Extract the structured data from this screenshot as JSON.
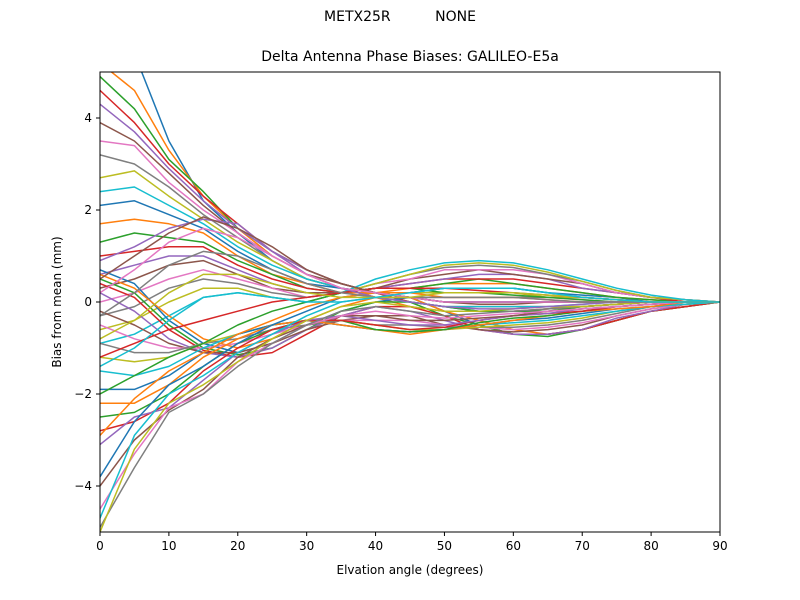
{
  "header": {
    "suptitle_left": "METX25R",
    "suptitle_right": "NONE",
    "title": "Delta Antenna Phase Biases: GALILEO-E5a"
  },
  "chart_data": {
    "type": "line",
    "title": "Delta Antenna Phase Biases: GALILEO-E5a",
    "xlabel": "Elvation angle (degrees)",
    "ylabel": "Bias from mean (mm)",
    "xlim": [
      0,
      90
    ],
    "ylim": [
      -5,
      5
    ],
    "xticks": [
      0,
      10,
      20,
      30,
      40,
      50,
      60,
      70,
      80,
      90
    ],
    "yticks": [
      -4,
      -2,
      0,
      2,
      4
    ],
    "grid": false,
    "legend": "none",
    "x": [
      0,
      5,
      10,
      15,
      20,
      25,
      30,
      35,
      40,
      45,
      50,
      55,
      60,
      65,
      70,
      75,
      80,
      85,
      90
    ],
    "colors": [
      "#1f77b4",
      "#ff7f0e",
      "#2ca02c",
      "#d62728",
      "#9467bd",
      "#8c564b",
      "#e377c2",
      "#7f7f7f",
      "#bcbd22",
      "#17becf"
    ],
    "series": [
      {
        "values": [
          5.5,
          5.4,
          3.5,
          2.2,
          1.5,
          0.9,
          0.5,
          0.3,
          0.1,
          0.0,
          -0.1,
          -0.2,
          -0.2,
          -0.15,
          -0.1,
          -0.05,
          0.0,
          0.0,
          0.0
        ]
      },
      {
        "values": [
          5.2,
          4.6,
          3.3,
          2.3,
          1.6,
          1.0,
          0.6,
          0.3,
          0.1,
          -0.1,
          -0.2,
          -0.2,
          -0.2,
          -0.15,
          -0.1,
          -0.05,
          0.0,
          0.0,
          0.0
        ]
      },
      {
        "values": [
          4.9,
          4.2,
          3.1,
          2.4,
          1.6,
          1.1,
          0.7,
          0.4,
          0.2,
          0.0,
          -0.1,
          -0.2,
          -0.2,
          -0.2,
          -0.1,
          -0.05,
          0.0,
          0.0,
          0.0
        ]
      },
      {
        "values": [
          4.6,
          3.9,
          3.0,
          2.3,
          1.7,
          1.1,
          0.7,
          0.4,
          0.2,
          0.0,
          -0.1,
          -0.1,
          -0.1,
          -0.1,
          -0.1,
          -0.05,
          0.0,
          0.0,
          0.0
        ]
      },
      {
        "values": [
          4.3,
          3.7,
          2.9,
          2.2,
          1.6,
          1.1,
          0.7,
          0.4,
          0.2,
          0.1,
          0.0,
          0.0,
          0.0,
          0.0,
          0.0,
          0.0,
          0.0,
          0.0,
          0.0
        ]
      },
      {
        "values": [
          3.9,
          3.5,
          2.8,
          2.1,
          1.5,
          1.0,
          0.6,
          0.4,
          0.2,
          0.1,
          0.0,
          0.0,
          0.0,
          0.0,
          0.0,
          0.0,
          0.0,
          0.0,
          0.0
        ]
      },
      {
        "values": [
          3.5,
          3.4,
          2.6,
          2.0,
          1.5,
          1.0,
          0.6,
          0.3,
          0.2,
          0.1,
          0.1,
          0.1,
          0.1,
          0.1,
          0.05,
          0.0,
          0.0,
          0.0,
          0.0
        ]
      },
      {
        "values": [
          3.2,
          3.0,
          2.5,
          1.9,
          1.4,
          0.9,
          0.5,
          0.3,
          0.2,
          0.1,
          0.1,
          0.1,
          0.1,
          0.1,
          0.1,
          0.05,
          0.0,
          0.0,
          0.0
        ]
      },
      {
        "values": [
          2.7,
          2.85,
          2.3,
          1.8,
          1.3,
          0.9,
          0.5,
          0.3,
          0.2,
          0.2,
          0.2,
          0.2,
          0.2,
          0.1,
          0.1,
          0.05,
          0.0,
          0.0,
          0.0
        ]
      },
      {
        "values": [
          2.4,
          2.5,
          2.1,
          1.7,
          1.2,
          0.8,
          0.5,
          0.3,
          0.2,
          0.2,
          0.3,
          0.3,
          0.3,
          0.2,
          0.1,
          0.05,
          0.0,
          0.0,
          0.0
        ]
      },
      {
        "values": [
          2.1,
          2.2,
          1.9,
          1.6,
          1.1,
          0.7,
          0.4,
          0.3,
          0.2,
          0.2,
          0.3,
          0.3,
          0.3,
          0.2,
          0.15,
          0.1,
          0.0,
          0.0,
          0.0
        ]
      },
      {
        "values": [
          1.7,
          1.8,
          1.7,
          1.5,
          1.0,
          0.6,
          0.4,
          0.2,
          0.2,
          0.3,
          0.4,
          0.4,
          0.4,
          0.3,
          0.2,
          0.1,
          0.05,
          0.0,
          0.0
        ]
      },
      {
        "values": [
          1.3,
          1.5,
          1.4,
          1.3,
          0.9,
          0.6,
          0.3,
          0.2,
          0.3,
          0.3,
          0.4,
          0.5,
          0.4,
          0.3,
          0.2,
          0.1,
          0.05,
          0.0,
          0.0
        ]
      },
      {
        "values": [
          1.0,
          1.1,
          1.2,
          1.2,
          0.8,
          0.5,
          0.3,
          0.2,
          0.3,
          0.4,
          0.5,
          0.5,
          0.5,
          0.4,
          0.3,
          0.2,
          0.1,
          0.0,
          0.0
        ]
      },
      {
        "values": [
          0.6,
          0.8,
          1.0,
          1.0,
          0.7,
          0.4,
          0.2,
          0.2,
          0.3,
          0.4,
          0.5,
          0.6,
          0.6,
          0.5,
          0.3,
          0.2,
          0.1,
          0.05,
          0.0
        ]
      },
      {
        "values": [
          0.3,
          0.5,
          0.8,
          0.9,
          0.6,
          0.3,
          0.2,
          0.2,
          0.3,
          0.5,
          0.6,
          0.7,
          0.6,
          0.5,
          0.4,
          0.2,
          0.1,
          0.05,
          0.0
        ]
      },
      {
        "values": [
          0.0,
          0.2,
          0.5,
          0.7,
          0.5,
          0.3,
          0.1,
          0.2,
          0.4,
          0.5,
          0.7,
          0.7,
          0.7,
          0.6,
          0.4,
          0.2,
          0.1,
          0.05,
          0.0
        ]
      },
      {
        "values": [
          -0.3,
          -0.1,
          0.3,
          0.5,
          0.4,
          0.2,
          0.1,
          0.2,
          0.4,
          0.6,
          0.75,
          0.8,
          0.75,
          0.6,
          0.45,
          0.25,
          0.1,
          0.05,
          0.0
        ]
      },
      {
        "values": [
          -0.6,
          -0.4,
          0.0,
          0.3,
          0.3,
          0.1,
          0.0,
          0.2,
          0.4,
          0.6,
          0.8,
          0.85,
          0.8,
          0.65,
          0.45,
          0.25,
          0.1,
          0.05,
          0.0
        ]
      },
      {
        "values": [
          -0.9,
          -0.7,
          -0.3,
          0.1,
          0.2,
          0.1,
          0.0,
          0.2,
          0.5,
          0.7,
          0.85,
          0.9,
          0.85,
          0.7,
          0.5,
          0.3,
          0.15,
          0.05,
          0.0
        ]
      },
      {
        "values": [
          0.7,
          0.4,
          -0.4,
          -0.9,
          -1.1,
          -0.9,
          -0.5,
          -0.2,
          0.0,
          0.1,
          -0.2,
          -0.5,
          -0.7,
          -0.7,
          -0.6,
          -0.4,
          -0.2,
          -0.1,
          0.0
        ]
      },
      {
        "values": [
          0.6,
          0.3,
          -0.3,
          -0.8,
          -1.0,
          -0.8,
          -0.4,
          -0.1,
          0.1,
          0.1,
          -0.2,
          -0.4,
          -0.6,
          -0.7,
          -0.6,
          -0.4,
          -0.2,
          -0.1,
          0.0
        ]
      },
      {
        "values": [
          0.5,
          0.2,
          -0.5,
          -1.0,
          -1.15,
          -1.0,
          -0.6,
          -0.2,
          0.0,
          0.0,
          -0.3,
          -0.5,
          -0.7,
          -0.75,
          -0.6,
          -0.4,
          -0.2,
          -0.1,
          0.0
        ]
      },
      {
        "values": [
          0.4,
          0.1,
          -0.6,
          -1.05,
          -1.2,
          -1.1,
          -0.7,
          -0.3,
          -0.1,
          -0.1,
          -0.3,
          -0.6,
          -0.7,
          -0.7,
          -0.6,
          -0.4,
          -0.2,
          -0.1,
          0.0
        ]
      },
      {
        "values": [
          0.2,
          -0.2,
          -0.8,
          -1.1,
          -1.2,
          -1.0,
          -0.6,
          -0.3,
          -0.1,
          -0.2,
          -0.4,
          -0.6,
          -0.7,
          -0.7,
          -0.6,
          -0.35,
          -0.2,
          -0.05,
          0.0
        ]
      },
      {
        "values": [
          -0.2,
          -0.5,
          -0.9,
          -1.1,
          -1.1,
          -0.9,
          -0.6,
          -0.4,
          -0.3,
          -0.3,
          -0.5,
          -0.6,
          -0.65,
          -0.6,
          -0.5,
          -0.3,
          -0.15,
          -0.05,
          0.0
        ]
      },
      {
        "values": [
          -0.5,
          -0.8,
          -1.0,
          -1.0,
          -0.9,
          -0.7,
          -0.5,
          -0.4,
          -0.4,
          -0.4,
          -0.5,
          -0.55,
          -0.6,
          -0.55,
          -0.45,
          -0.3,
          -0.15,
          -0.05,
          0.0
        ]
      },
      {
        "values": [
          -0.9,
          -1.1,
          -1.1,
          -0.9,
          -0.8,
          -0.6,
          -0.5,
          -0.4,
          -0.5,
          -0.5,
          -0.55,
          -0.55,
          -0.55,
          -0.5,
          -0.4,
          -0.25,
          -0.1,
          -0.05,
          0.0
        ]
      },
      {
        "values": [
          -1.2,
          -1.3,
          -1.2,
          -0.9,
          -0.7,
          -0.5,
          -0.4,
          -0.4,
          -0.5,
          -0.6,
          -0.6,
          -0.55,
          -0.5,
          -0.45,
          -0.35,
          -0.2,
          -0.1,
          -0.05,
          0.0
        ]
      },
      {
        "values": [
          -1.5,
          -1.6,
          -1.4,
          -1.0,
          -0.7,
          -0.5,
          -0.4,
          -0.5,
          -0.6,
          -0.65,
          -0.6,
          -0.5,
          -0.45,
          -0.4,
          -0.3,
          -0.2,
          -0.1,
          -0.05,
          0.0
        ]
      },
      {
        "values": [
          -1.9,
          -1.9,
          -1.6,
          -1.1,
          -0.7,
          -0.5,
          -0.4,
          -0.5,
          -0.6,
          -0.65,
          -0.6,
          -0.5,
          -0.4,
          -0.35,
          -0.25,
          -0.15,
          -0.1,
          0.0,
          0.0
        ]
      },
      {
        "values": [
          -2.2,
          -2.2,
          -1.8,
          -1.2,
          -0.8,
          -0.5,
          -0.4,
          -0.5,
          -0.6,
          -0.7,
          -0.6,
          -0.5,
          -0.4,
          -0.3,
          -0.2,
          -0.15,
          -0.1,
          0.0,
          0.0
        ]
      },
      {
        "values": [
          -2.5,
          -2.4,
          -2.0,
          -1.4,
          -0.9,
          -0.6,
          -0.4,
          -0.4,
          -0.6,
          -0.65,
          -0.6,
          -0.45,
          -0.35,
          -0.3,
          -0.2,
          -0.1,
          -0.05,
          0.0,
          0.0
        ]
      },
      {
        "values": [
          -2.8,
          -2.6,
          -2.2,
          -1.5,
          -1.0,
          -0.6,
          -0.4,
          -0.4,
          -0.5,
          -0.6,
          -0.55,
          -0.4,
          -0.3,
          -0.25,
          -0.2,
          -0.1,
          -0.05,
          0.0,
          0.0
        ]
      },
      {
        "values": [
          -3.1,
          -2.5,
          -2.3,
          -1.7,
          -1.1,
          -0.7,
          -0.4,
          -0.3,
          -0.4,
          -0.5,
          -0.5,
          -0.4,
          -0.3,
          -0.25,
          -0.15,
          -0.1,
          -0.05,
          0.0,
          0.0
        ]
      },
      {
        "values": [
          -4.0,
          -3.0,
          -2.35,
          -1.9,
          -1.2,
          -0.8,
          -0.5,
          -0.3,
          -0.3,
          -0.4,
          -0.4,
          -0.35,
          -0.3,
          -0.2,
          -0.15,
          -0.1,
          -0.05,
          0.0,
          0.0
        ]
      },
      {
        "values": [
          -4.5,
          -3.3,
          -2.3,
          -2.0,
          -1.3,
          -0.9,
          -0.5,
          -0.3,
          -0.2,
          -0.3,
          -0.35,
          -0.3,
          -0.25,
          -0.2,
          -0.15,
          -0.1,
          -0.05,
          0.0,
          0.0
        ]
      },
      {
        "values": [
          -4.9,
          -3.6,
          -2.4,
          -2.0,
          -1.4,
          -0.9,
          -0.5,
          -0.2,
          -0.1,
          -0.2,
          -0.3,
          -0.25,
          -0.2,
          -0.15,
          -0.1,
          -0.05,
          0.0,
          0.0,
          0.0
        ]
      },
      {
        "values": [
          -5.0,
          -3.2,
          -2.2,
          -1.8,
          -1.3,
          -0.8,
          -0.4,
          -0.1,
          0.0,
          -0.1,
          -0.2,
          -0.2,
          -0.15,
          -0.1,
          -0.1,
          -0.05,
          0.0,
          0.0,
          0.0
        ]
      },
      {
        "values": [
          -4.7,
          -2.9,
          -2.0,
          -1.6,
          -1.1,
          -0.7,
          -0.3,
          0.0,
          0.1,
          0.0,
          -0.1,
          -0.1,
          -0.1,
          -0.1,
          -0.05,
          0.0,
          0.0,
          0.0,
          0.0
        ]
      },
      {
        "values": [
          -3.8,
          -2.6,
          -1.8,
          -1.4,
          -0.9,
          -0.5,
          -0.2,
          0.1,
          0.2,
          0.1,
          0.0,
          0.0,
          0.0,
          0.0,
          0.0,
          0.0,
          0.0,
          0.0,
          0.0
        ]
      },
      {
        "values": [
          -2.9,
          -2.1,
          -1.5,
          -1.1,
          -0.7,
          -0.4,
          -0.1,
          0.1,
          0.2,
          0.2,
          0.1,
          0.1,
          0.1,
          0.05,
          0.0,
          0.0,
          0.0,
          0.0,
          0.0
        ]
      },
      {
        "values": [
          -2.0,
          -1.6,
          -1.2,
          -0.9,
          -0.5,
          -0.2,
          0.0,
          0.2,
          0.3,
          0.3,
          0.2,
          0.2,
          0.15,
          0.1,
          0.05,
          0.0,
          0.0,
          0.0,
          0.0
        ]
      },
      {
        "values": [
          -1.2,
          -0.9,
          -0.6,
          -0.4,
          -0.2,
          0.0,
          0.1,
          0.2,
          0.3,
          0.3,
          0.3,
          0.25,
          0.2,
          0.15,
          0.1,
          0.05,
          0.0,
          0.0,
          0.0
        ]
      },
      {
        "values": [
          0.9,
          1.2,
          1.6,
          1.8,
          1.7,
          1.1,
          0.6,
          0.3,
          0.1,
          0.0,
          -0.1,
          -0.15,
          -0.15,
          -0.1,
          -0.05,
          0.0,
          0.0,
          0.0,
          0.0
        ]
      },
      {
        "values": [
          0.5,
          1.0,
          1.5,
          1.85,
          1.6,
          1.2,
          0.7,
          0.4,
          0.2,
          0.1,
          0.0,
          -0.05,
          -0.05,
          0.0,
          0.0,
          0.0,
          0.0,
          0.0,
          0.0
        ]
      },
      {
        "values": [
          0.2,
          0.7,
          1.3,
          1.6,
          1.4,
          1.0,
          0.6,
          0.3,
          0.2,
          0.1,
          0.0,
          0.0,
          0.0,
          0.0,
          0.0,
          0.0,
          0.0,
          0.0,
          0.0
        ]
      },
      {
        "values": [
          -0.3,
          0.2,
          0.8,
          1.1,
          1.0,
          0.7,
          0.4,
          0.2,
          0.1,
          0.1,
          0.1,
          0.1,
          0.1,
          0.05,
          0.0,
          0.0,
          0.0,
          0.0,
          0.0
        ]
      },
      {
        "values": [
          -0.8,
          -0.4,
          0.2,
          0.6,
          0.6,
          0.4,
          0.2,
          0.1,
          0.1,
          0.1,
          0.2,
          0.2,
          0.2,
          0.15,
          0.1,
          0.05,
          0.0,
          0.0,
          0.0
        ]
      },
      {
        "values": [
          -1.4,
          -1.0,
          -0.4,
          0.1,
          0.2,
          0.1,
          0.0,
          0.0,
          0.1,
          0.2,
          0.3,
          0.3,
          0.3,
          0.2,
          0.1,
          0.05,
          0.0,
          0.0,
          0.0
        ]
      }
    ]
  }
}
